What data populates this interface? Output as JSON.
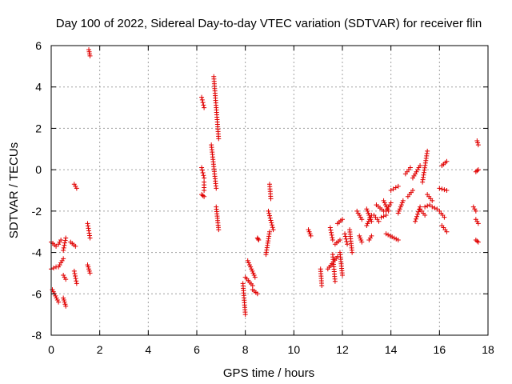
{
  "chart_data": {
    "type": "scatter",
    "title": "Day 100 of 2022, Sidereal Day-to-day VTEC variation (SDTVAR) for receiver flin",
    "xlabel": "GPS time / hours",
    "ylabel": "SDTVAR / TECUs",
    "xlim": [
      0,
      18
    ],
    "ylim": [
      -8,
      6
    ],
    "xticks": [
      0,
      2,
      4,
      6,
      8,
      10,
      12,
      14,
      16,
      18
    ],
    "yticks": [
      -8,
      -6,
      -4,
      -2,
      0,
      2,
      4,
      6
    ],
    "xtick_labels": [
      "0",
      "2",
      "4",
      "6",
      "8",
      "10",
      "12",
      "14",
      "16",
      "18"
    ],
    "ytick_labels": [
      "-8",
      "-6",
      "-4",
      "-2",
      "0",
      "2",
      "4",
      "6"
    ],
    "grid": true,
    "marker": "+",
    "color": "#e00000",
    "segments": [
      [
        0.0,
        -3.5,
        0.2,
        -3.7
      ],
      [
        0.0,
        -4.8,
        0.2,
        -4.7
      ],
      [
        0.05,
        -5.8,
        0.3,
        -6.4
      ],
      [
        0.3,
        -3.6,
        0.4,
        -3.4
      ],
      [
        0.3,
        -4.7,
        0.5,
        -4.3
      ],
      [
        0.5,
        -3.9,
        0.6,
        -3.3
      ],
      [
        0.5,
        -5.1,
        0.6,
        -5.3
      ],
      [
        0.5,
        -6.2,
        0.6,
        -6.6
      ],
      [
        0.8,
        -3.5,
        1.0,
        -3.7
      ],
      [
        0.95,
        -4.9,
        1.05,
        -5.5
      ],
      [
        0.95,
        -0.7,
        1.05,
        -0.9
      ],
      [
        1.5,
        -2.6,
        1.6,
        -3.3
      ],
      [
        1.5,
        -4.6,
        1.6,
        -5.0
      ],
      [
        1.55,
        5.8,
        1.6,
        5.5
      ],
      [
        6.2,
        3.5,
        6.3,
        3.0
      ],
      [
        6.2,
        0.1,
        6.3,
        -0.4
      ],
      [
        6.2,
        -1.2,
        6.3,
        -1.3
      ],
      [
        6.3,
        -0.6,
        6.3,
        -1.0
      ],
      [
        6.6,
        1.2,
        6.8,
        -0.9
      ],
      [
        6.7,
        4.5,
        6.9,
        1.5
      ],
      [
        6.8,
        -1.8,
        6.9,
        -2.9
      ],
      [
        7.9,
        -5.5,
        8.0,
        -7.0
      ],
      [
        8.0,
        -5.2,
        8.3,
        -5.6
      ],
      [
        8.1,
        -4.4,
        8.4,
        -5.2
      ],
      [
        8.3,
        -5.8,
        8.5,
        -6.0
      ],
      [
        8.5,
        -3.3,
        8.55,
        -3.4
      ],
      [
        8.85,
        -4.1,
        9.0,
        -3.0
      ],
      [
        8.95,
        -2.0,
        9.15,
        -2.9
      ],
      [
        9.0,
        -0.7,
        9.05,
        -1.4
      ],
      [
        10.6,
        -2.9,
        10.7,
        -3.2
      ],
      [
        11.1,
        -4.8,
        11.15,
        -5.6
      ],
      [
        11.4,
        -4.8,
        11.8,
        -4.2
      ],
      [
        11.5,
        -2.8,
        11.6,
        -3.4
      ],
      [
        11.6,
        -4.1,
        11.7,
        -5.4
      ],
      [
        11.7,
        -3.6,
        11.9,
        -3.4
      ],
      [
        11.8,
        -2.6,
        12.0,
        -2.4
      ],
      [
        11.9,
        -4.0,
        12.0,
        -5.1
      ],
      [
        12.1,
        -3.1,
        12.2,
        -3.6
      ],
      [
        12.3,
        -2.9,
        12.4,
        -4.0
      ],
      [
        12.6,
        -2.0,
        12.8,
        -2.4
      ],
      [
        12.7,
        -3.2,
        12.8,
        -3.5
      ],
      [
        13.0,
        -2.7,
        13.2,
        -2.2
      ],
      [
        13.0,
        -1.9,
        13.2,
        -2.5
      ],
      [
        13.1,
        -3.4,
        13.2,
        -3.2
      ],
      [
        13.3,
        -2.2,
        13.5,
        -2.5
      ],
      [
        13.4,
        -1.7,
        13.7,
        -2.0
      ],
      [
        13.6,
        -2.3,
        13.8,
        -2.2
      ],
      [
        13.7,
        -1.5,
        13.9,
        -2.0
      ],
      [
        13.8,
        -2.0,
        14.0,
        -1.6
      ],
      [
        13.8,
        -3.1,
        14.3,
        -3.4
      ],
      [
        14.0,
        -1.0,
        14.3,
        -0.8
      ],
      [
        14.3,
        -2.1,
        14.5,
        -1.5
      ],
      [
        14.6,
        -0.2,
        14.8,
        0.1
      ],
      [
        14.7,
        -1.3,
        14.9,
        -1.0
      ],
      [
        14.9,
        -0.4,
        15.2,
        0.2
      ],
      [
        15.0,
        -2.5,
        15.2,
        -1.8
      ],
      [
        15.2,
        -1.9,
        15.4,
        -2.2
      ],
      [
        15.3,
        -0.6,
        15.5,
        0.9
      ],
      [
        15.4,
        -1.8,
        15.6,
        -1.7
      ],
      [
        15.5,
        -1.2,
        15.7,
        -1.5
      ],
      [
        15.7,
        -1.8,
        15.9,
        -1.9
      ],
      [
        16.0,
        -2.0,
        16.2,
        -2.3
      ],
      [
        16.0,
        -0.9,
        16.3,
        -1.0
      ],
      [
        16.1,
        0.2,
        16.3,
        0.4
      ],
      [
        16.1,
        -2.7,
        16.3,
        -3.0
      ],
      [
        17.4,
        -1.8,
        17.5,
        -2.0
      ],
      [
        17.5,
        -2.4,
        17.6,
        -2.6
      ],
      [
        17.5,
        -3.4,
        17.6,
        -3.5
      ],
      [
        17.55,
        1.4,
        17.6,
        1.2
      ],
      [
        17.5,
        -0.1,
        17.6,
        0.0
      ]
    ]
  }
}
